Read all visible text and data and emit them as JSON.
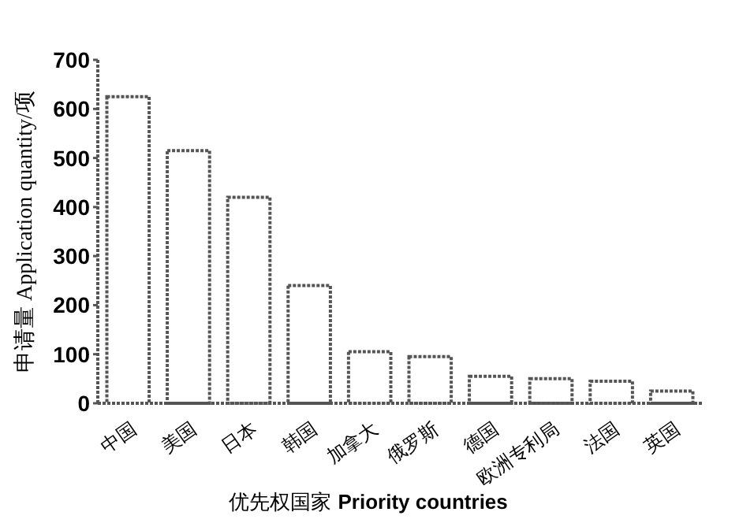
{
  "chart_data": {
    "type": "bar",
    "xlabel": "优先权国家 **Priority countries**",
    "ylabel": "申请量 Application quantity/项",
    "categories": [
      "中国",
      "美国",
      "日本",
      "韩国",
      "加拿大",
      "俄罗斯",
      "德国",
      "欧洲专利局",
      "法国",
      "英国"
    ],
    "values": [
      625,
      515,
      420,
      240,
      105,
      95,
      55,
      50,
      45,
      25
    ],
    "color": "#555555",
    "ylim": [
      0,
      700
    ],
    "yticks": [
      0,
      100,
      200,
      300,
      400,
      500,
      600,
      700
    ],
    "grid": false
  }
}
